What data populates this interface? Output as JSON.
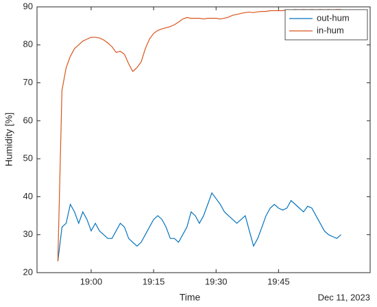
{
  "chart_data": {
    "type": "line",
    "xlabel": "Time",
    "ylabel": "Humidity [%]",
    "x_secondary_label": "Dec 11, 2023",
    "x": [
      "18:52",
      "18:53",
      "18:54",
      "18:55",
      "18:56",
      "18:57",
      "18:58",
      "18:59",
      "19:00",
      "19:01",
      "19:02",
      "19:03",
      "19:04",
      "19:05",
      "19:06",
      "19:07",
      "19:08",
      "19:09",
      "19:10",
      "19:11",
      "19:12",
      "19:13",
      "19:14",
      "19:15",
      "19:16",
      "19:17",
      "19:18",
      "19:19",
      "19:20",
      "19:21",
      "19:22",
      "19:23",
      "19:24",
      "19:25",
      "19:26",
      "19:27",
      "19:28",
      "19:29",
      "19:30",
      "19:31",
      "19:32",
      "19:33",
      "19:34",
      "19:35",
      "19:36",
      "19:37",
      "19:38",
      "19:39",
      "19:40",
      "19:41",
      "19:42",
      "19:43",
      "19:44",
      "19:45",
      "19:46",
      "19:47",
      "19:48",
      "19:49",
      "19:50",
      "19:51",
      "19:52",
      "19:53",
      "19:54",
      "19:55",
      "19:56",
      "19:57",
      "19:58",
      "19:59",
      "20:00"
    ],
    "series": [
      {
        "name": "out-hum",
        "color": "#0072bd",
        "values": [
          23,
          32,
          33,
          38,
          36,
          33,
          36,
          34,
          31,
          33,
          31,
          30,
          29,
          29,
          31,
          33,
          32,
          29,
          28,
          27,
          28,
          30,
          32,
          34,
          35,
          34,
          32,
          29,
          29,
          28,
          30,
          32,
          36,
          35,
          33,
          35,
          38,
          41,
          39.5,
          38,
          36,
          35,
          34,
          33,
          34,
          35,
          31,
          27,
          29,
          32,
          35,
          37,
          38,
          37,
          36.5,
          37,
          39,
          38,
          37,
          36,
          37.5,
          37,
          35,
          33,
          31,
          30,
          29.5,
          29,
          30
        ]
      },
      {
        "name": "in-hum",
        "color": "#d95319",
        "values": [
          23,
          68,
          74,
          77,
          79,
          80,
          81,
          81.5,
          82,
          82,
          81.8,
          81.3,
          80.5,
          79.5,
          78,
          78.3,
          77.5,
          75,
          73,
          74,
          75.5,
          79,
          81.5,
          83,
          83.8,
          84.2,
          84.5,
          84.8,
          85.3,
          86,
          86.8,
          87.2,
          87,
          87,
          87,
          86.8,
          87,
          87,
          87,
          86.8,
          87,
          87.3,
          87.8,
          88,
          88.3,
          88.5,
          88.6,
          88.5,
          88.7,
          88.8,
          88.8,
          89,
          89,
          89,
          89,
          89.2,
          89.1,
          89.3,
          89.2,
          89.3,
          89.2,
          89.3,
          89.2,
          89.3,
          89.2,
          89.3,
          89.2,
          89.3,
          89.3
        ]
      }
    ],
    "xlim": [
      "18:47",
      "20:07"
    ],
    "xticks": [
      "19:00",
      "19:15",
      "19:30",
      "19:45"
    ],
    "ylim": [
      20,
      90
    ],
    "yticks": [
      20,
      30,
      40,
      50,
      60,
      70,
      80,
      90
    ],
    "grid": false,
    "legend": "upper right"
  }
}
